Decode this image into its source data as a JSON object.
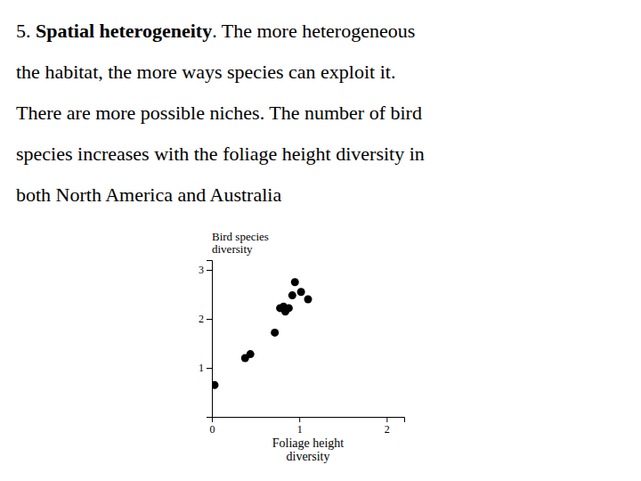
{
  "chart_data": {
    "type": "scatter",
    "title": "Bird species\ndiversity",
    "x_label": "Foliage height\ndiversity",
    "annotations": [
      [
        "5. ",
        "Spatial heterogeneity",
        ". The more heterogeneous"
      ],
      [
        "the habitat, the more ways species can exploit it."
      ],
      [
        "There are more possible niches. The number of bird"
      ],
      [
        "species increases with the foliage height diversity in"
      ],
      [
        "both North America and Australia"
      ]
    ],
    "x": [
      0.03,
      0.38,
      0.44,
      0.72,
      0.78,
      0.82,
      0.84,
      0.88,
      0.92,
      0.95,
      1.02,
      1.1
    ],
    "values": [
      0.65,
      1.2,
      1.28,
      1.72,
      2.22,
      2.25,
      2.15,
      2.22,
      2.48,
      2.75,
      2.55,
      2.4
    ],
    "color": "#000000",
    "xlim": [
      0,
      2.2
    ],
    "ylim": [
      0,
      3.2
    ],
    "xticks": [
      0,
      1,
      2
    ],
    "yticks": [
      1,
      2,
      3
    ],
    "grid": false
  }
}
